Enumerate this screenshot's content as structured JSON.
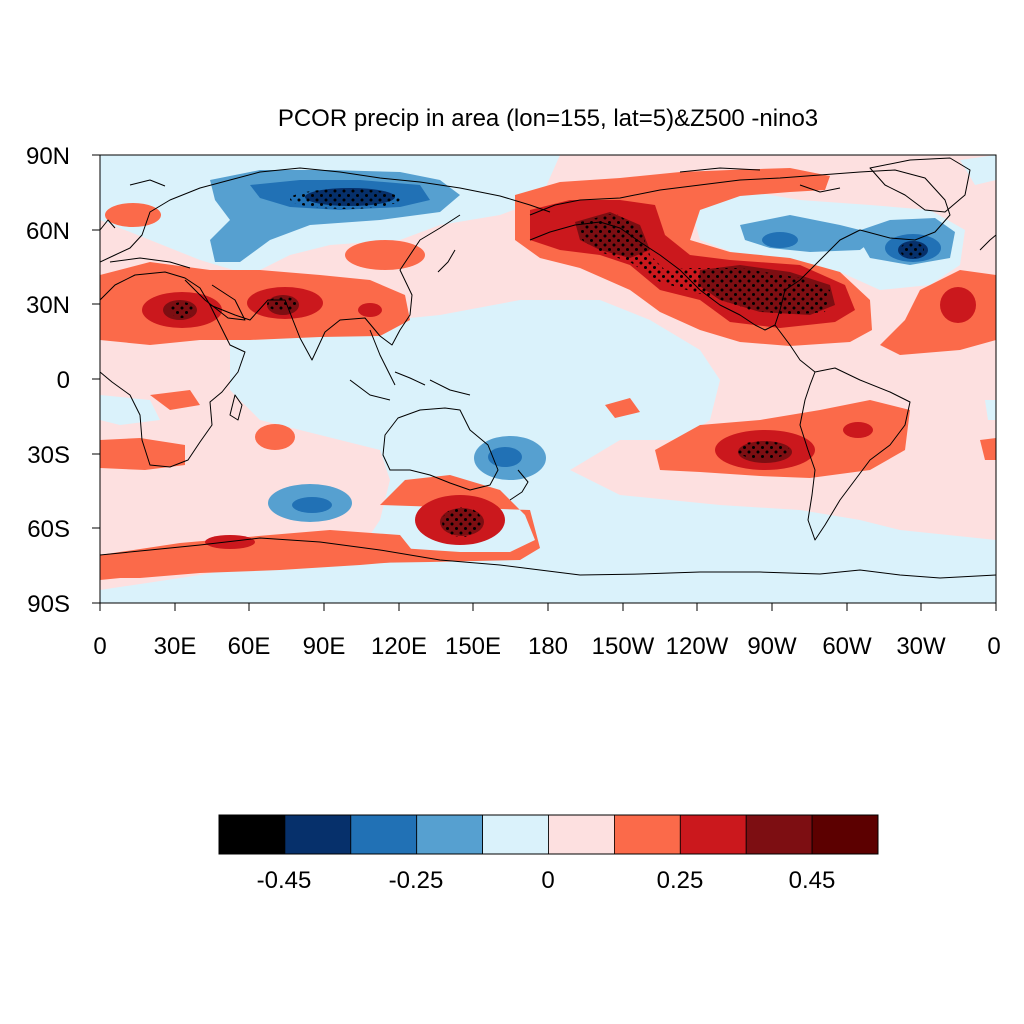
{
  "title": "PCOR precip in area (lon=155, lat=5)&Z500 -nino3",
  "lat_labels": [
    "90N",
    "60N",
    "30N",
    "0",
    "30S",
    "60S",
    "90S"
  ],
  "lon_labels": [
    "0",
    "30E",
    "60E",
    "90E",
    "120E",
    "150E",
    "180",
    "150W",
    "120W",
    "90W",
    "60W",
    "30W",
    "0"
  ],
  "colorbar": {
    "colors": [
      "#000000",
      "#06306b",
      "#2171b5",
      "#56a0d0",
      "#daf2fb",
      "#fde0e0",
      "#fb6a4a",
      "#cb181d",
      "#7d0e12",
      "#5c0000"
    ],
    "labels": [
      "-0.45",
      "-0.25",
      "0",
      "0.25",
      "0.45"
    ]
  },
  "map_data": {
    "type": "contour_map",
    "lon_range": [
      0,
      360
    ],
    "lat_range": [
      -90,
      90
    ],
    "field": "partial correlation",
    "stippling": "significant regions"
  }
}
